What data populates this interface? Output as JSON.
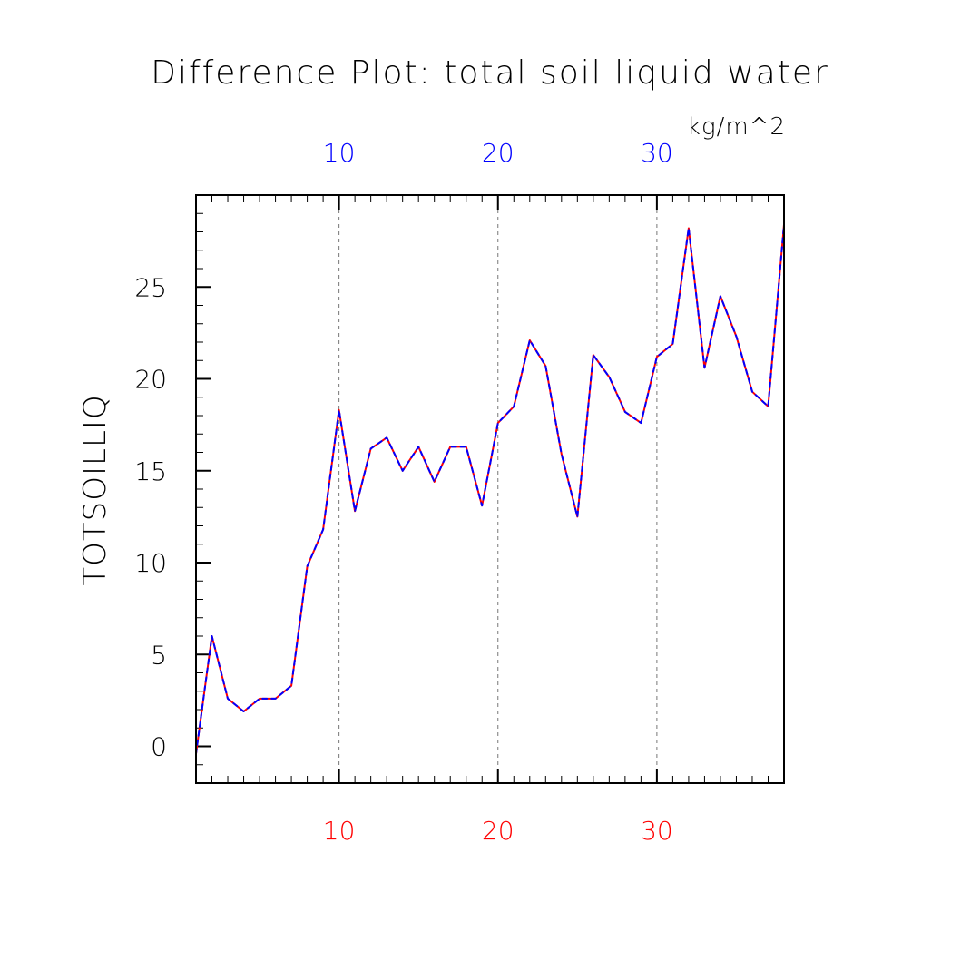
{
  "chart_data": {
    "type": "line",
    "title": "Difference Plot: total soil liquid water",
    "units": "kg/m^2",
    "ylabel": "TOTSOILLIQ",
    "xlabel": "",
    "xlim": [
      1,
      38
    ],
    "ylim": [
      -2,
      30
    ],
    "x_ticks": [
      10,
      20,
      30
    ],
    "y_ticks": [
      0,
      5,
      10,
      15,
      20,
      25
    ],
    "grid": "dashed vertical lines at x ticks",
    "x": [
      1,
      2,
      3,
      4,
      5,
      6,
      7,
      8,
      9,
      10,
      11,
      12,
      13,
      14,
      15,
      16,
      17,
      18,
      19,
      20,
      21,
      22,
      23,
      24,
      25,
      26,
      27,
      28,
      29,
      30,
      31,
      32,
      33,
      34,
      35,
      36,
      37,
      38
    ],
    "series": [
      {
        "color": "#ff0000",
        "style": "solid",
        "values": [
          -0.4,
          6.0,
          2.6,
          1.9,
          2.6,
          2.6,
          3.3,
          9.8,
          11.8,
          18.3,
          12.8,
          16.2,
          16.8,
          15.0,
          16.3,
          14.4,
          16.3,
          16.3,
          13.1,
          17.6,
          18.5,
          22.1,
          20.7,
          15.9,
          12.5,
          21.3,
          20.1,
          18.2,
          17.6,
          21.2,
          21.9,
          28.2,
          20.6,
          24.5,
          22.3,
          19.3,
          18.5,
          28.4
        ]
      },
      {
        "color": "#0000ff",
        "style": "dashed",
        "values": [
          -0.4,
          6.0,
          2.6,
          1.9,
          2.6,
          2.6,
          3.3,
          9.8,
          11.8,
          18.3,
          12.8,
          16.2,
          16.8,
          15.0,
          16.3,
          14.4,
          16.3,
          16.3,
          13.1,
          17.6,
          18.5,
          22.1,
          20.7,
          15.9,
          12.5,
          21.3,
          20.1,
          18.2,
          17.6,
          21.2,
          21.9,
          28.2,
          20.6,
          24.5,
          22.3,
          19.3,
          18.5,
          28.4
        ]
      }
    ],
    "bottom_axis_color": "#ff0000",
    "top_axis_color": "#0000ff"
  }
}
